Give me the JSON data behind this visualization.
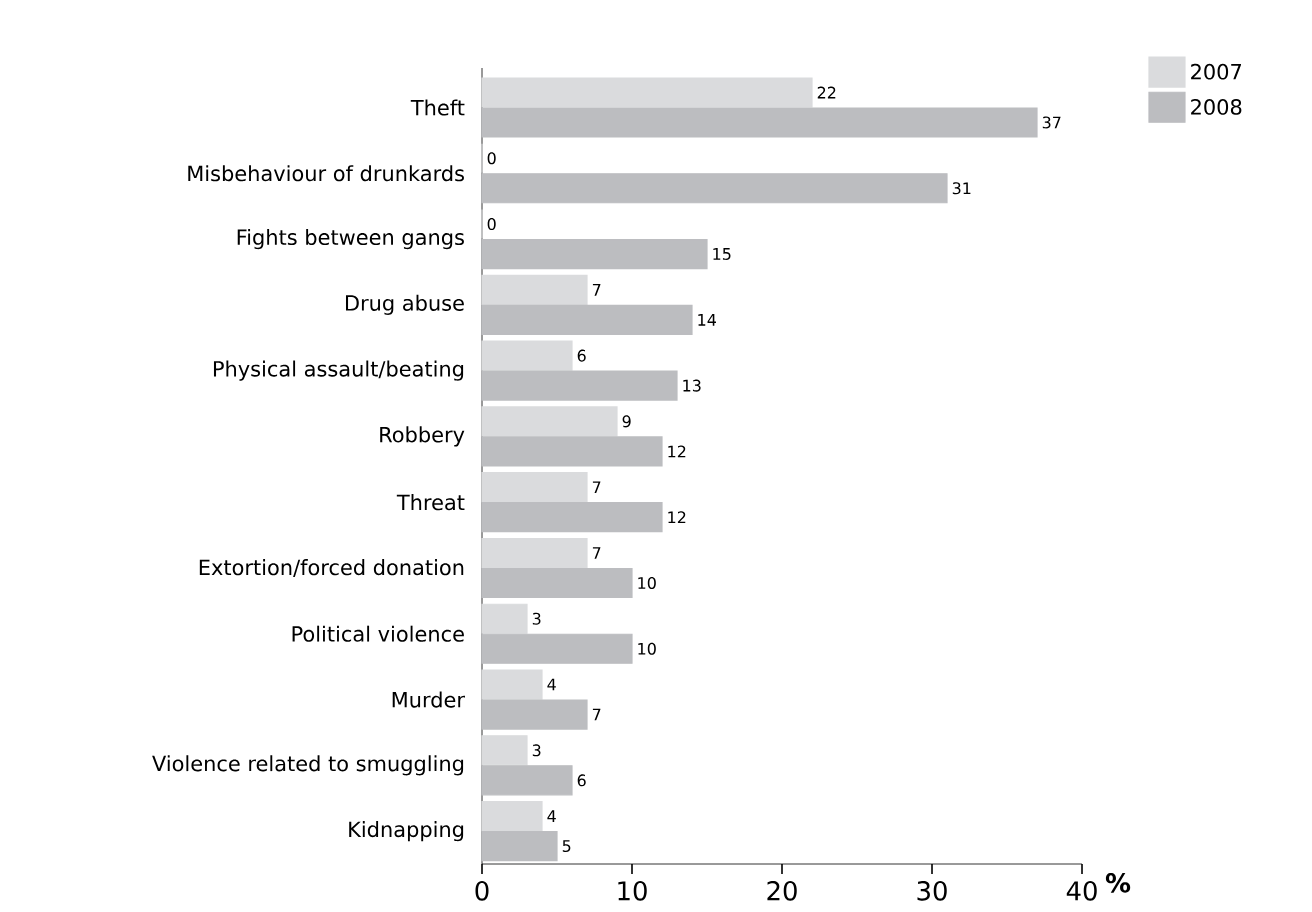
{
  "chart_data": {
    "type": "bar",
    "orientation": "horizontal",
    "categories": [
      "Theft",
      "Misbehaviour of drunkards",
      "Fights between gangs",
      "Drug abuse",
      "Physical assault/beating",
      "Robbery",
      "Threat",
      "Extortion/forced donation",
      "Political violence",
      "Murder",
      "Violence related to smuggling",
      "Kidnapping"
    ],
    "series": [
      {
        "name": "2007",
        "color": "#dadbdd",
        "values": [
          22,
          0,
          0,
          7,
          6,
          9,
          7,
          7,
          3,
          4,
          3,
          4
        ]
      },
      {
        "name": "2008",
        "color": "#bcbdc0",
        "values": [
          37,
          31,
          15,
          14,
          13,
          12,
          12,
          10,
          10,
          7,
          6,
          5
        ]
      }
    ],
    "xlim": [
      0,
      40
    ],
    "xticks": [
      0,
      10,
      20,
      30,
      40
    ],
    "xlabel": "**%**",
    "data_labels": true,
    "legend": "top right",
    "grid": false
  }
}
